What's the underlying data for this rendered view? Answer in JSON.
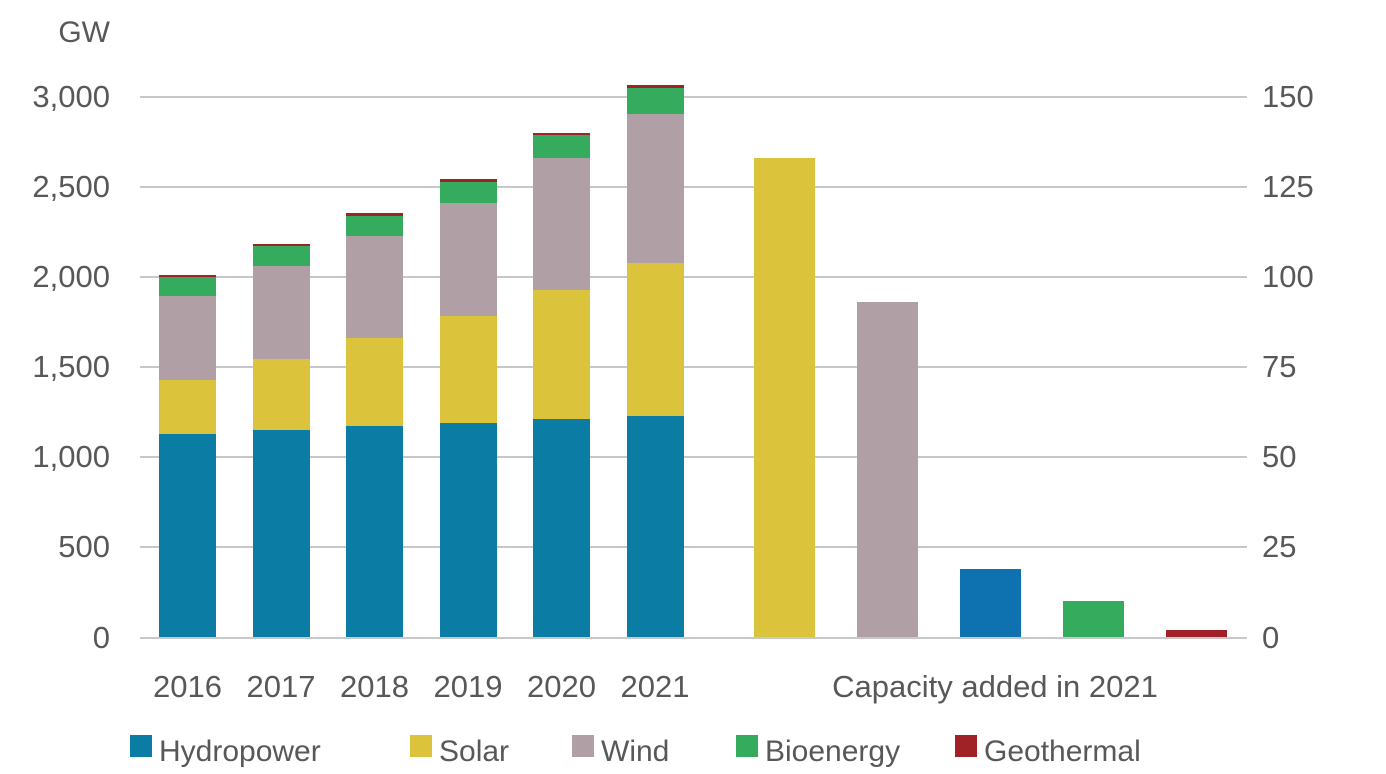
{
  "chart_data": {
    "type": "bar",
    "unit_label": "GW",
    "colors": {
      "hydropower": "#0b7ca3",
      "hydropower_added": "#0f72b0",
      "solar": "#dcc33c",
      "wind": "#b0a0a6",
      "bioenergy": "#35ab5d",
      "geothermal": "#a02226",
      "grid": "#c7c8ca",
      "text": "#57585a"
    },
    "left_axis": {
      "max": 3000,
      "ticks": [
        {
          "value": 0,
          "label": "0"
        },
        {
          "value": 500,
          "label": "500"
        },
        {
          "value": 1000,
          "label": "1,000"
        },
        {
          "value": 1500,
          "label": "1,500"
        },
        {
          "value": 2000,
          "label": "2,000"
        },
        {
          "value": 2500,
          "label": "2,500"
        },
        {
          "value": 3000,
          "label": "3,000"
        }
      ]
    },
    "right_axis": {
      "max": 150,
      "ticks": [
        {
          "value": 0,
          "label": "0"
        },
        {
          "value": 25,
          "label": "25"
        },
        {
          "value": 50,
          "label": "50"
        },
        {
          "value": 75,
          "label": "75"
        },
        {
          "value": 100,
          "label": "100"
        },
        {
          "value": 125,
          "label": "125"
        },
        {
          "value": 150,
          "label": "150"
        }
      ]
    },
    "stacked_panel": {
      "categories": [
        "2016",
        "2017",
        "2018",
        "2019",
        "2020",
        "2021"
      ],
      "series": [
        {
          "name": "Hydropower",
          "color": "#0b7ca3",
          "values": [
            1131,
            1151,
            1172,
            1190,
            1211,
            1230
          ]
        },
        {
          "name": "Solar",
          "color": "#dcc33c",
          "values": [
            295,
            396,
            489,
            595,
            714,
            849
          ]
        },
        {
          "name": "Wind",
          "color": "#b0a0a6",
          "values": [
            467,
            514,
            564,
            623,
            733,
            825
          ]
        },
        {
          "name": "Bioenergy",
          "color": "#35ab5d",
          "values": [
            104,
            109,
            115,
            120,
            127,
            143
          ]
        },
        {
          "name": "Geothermal",
          "color": "#a02226",
          "values": [
            13,
            13,
            13,
            14,
            14,
            16
          ]
        }
      ]
    },
    "added_panel": {
      "xlabel": "Capacity added in 2021",
      "bars": [
        {
          "name": "Solar",
          "color": "#dcc33c",
          "value": 133
        },
        {
          "name": "Wind",
          "color": "#b0a0a6",
          "value": 93
        },
        {
          "name": "Hydropower",
          "color": "#0f72b0",
          "value": 19
        },
        {
          "name": "Bioenergy",
          "color": "#35ab5d",
          "value": 10
        },
        {
          "name": "Geothermal",
          "color": "#a02226",
          "value": 2
        }
      ]
    },
    "legend": [
      {
        "label": "Hydropower",
        "color": "#0b7ca3"
      },
      {
        "label": "Solar",
        "color": "#dcc33c"
      },
      {
        "label": "Wind",
        "color": "#b0a0a6"
      },
      {
        "label": "Bioenergy",
        "color": "#35ab5d"
      },
      {
        "label": "Geothermal",
        "color": "#a02226"
      }
    ]
  }
}
